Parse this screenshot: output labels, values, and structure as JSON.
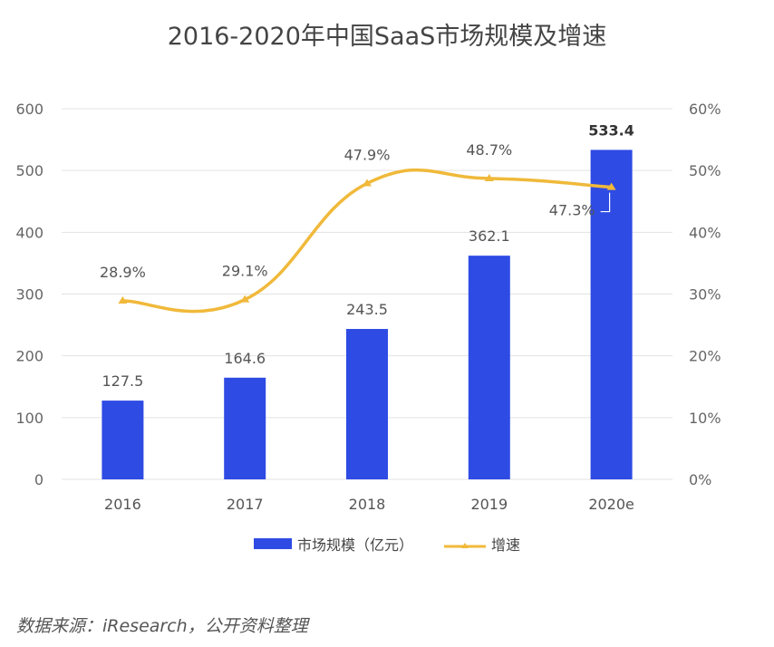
{
  "chart_data": {
    "type": "bar+line",
    "title": "2016-2020年中国SaaS市场规模及增速",
    "categories": [
      "2016",
      "2017",
      "2018",
      "2019",
      "2020e"
    ],
    "series": [
      {
        "name": "市场规模（亿元）",
        "type": "bar",
        "axis": "left",
        "values": [
          127.5,
          164.6,
          243.5,
          362.1,
          533.4
        ],
        "labels": [
          "127.5",
          "164.6",
          "243.5",
          "362.1",
          "533.4"
        ],
        "color": "#2e4be4"
      },
      {
        "name": "增速",
        "type": "line",
        "axis": "right",
        "smooth": true,
        "values": [
          28.9,
          29.1,
          47.9,
          48.7,
          47.3
        ],
        "labels": [
          "28.9%",
          "29.1%",
          "47.9%",
          "48.7%",
          "47.3%"
        ],
        "color": "#f0b93a"
      }
    ],
    "left_axis": {
      "ylim": [
        0,
        600
      ],
      "ticks": [
        "0",
        "100",
        "200",
        "300",
        "400",
        "500",
        "600"
      ]
    },
    "right_axis": {
      "ylim": [
        0,
        60
      ],
      "ticks": [
        "0%",
        "10%",
        "20%",
        "30%",
        "40%",
        "50%",
        "60%"
      ]
    },
    "grid": true,
    "legend": {
      "position": "bottom",
      "items": [
        "市场规模（亿元）",
        "增速"
      ]
    }
  },
  "source_note": "数据来源：iResearch，公开资料整理"
}
